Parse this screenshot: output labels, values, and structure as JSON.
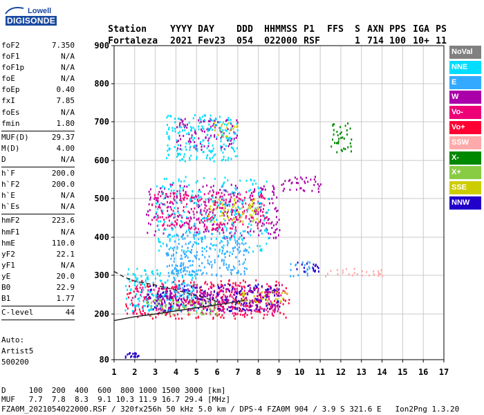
{
  "logo": {
    "line1": "Lowell",
    "line2": "DIGISONDE"
  },
  "header": {
    "labels": [
      "Station",
      "YYYY",
      "DAY",
      "DDD",
      "HHMMSS",
      "P1",
      "FFS",
      "S",
      "AXN",
      "PPS",
      "IGA",
      "PS"
    ],
    "values": [
      "Fortaleza",
      "2021",
      "Fev23",
      "054",
      "022000",
      "RSF",
      "",
      "1",
      "714",
      "100",
      "10+",
      "11"
    ]
  },
  "params": {
    "group1": [
      {
        "name": "foF2",
        "value": "7.350"
      },
      {
        "name": "foF1",
        "value": "N/A"
      },
      {
        "name": "foF1p",
        "value": "N/A"
      },
      {
        "name": "foE",
        "value": "N/A"
      },
      {
        "name": "foEp",
        "value": "0.40"
      },
      {
        "name": "fxI",
        "value": "7.85"
      },
      {
        "name": "foEs",
        "value": "N/A"
      },
      {
        "name": "fmin",
        "value": "1.80"
      }
    ],
    "group2": [
      {
        "name": "MUF(D)",
        "value": "29.37"
      },
      {
        "name": "M(D)",
        "value": "4.00"
      },
      {
        "name": "D",
        "value": "N/A"
      }
    ],
    "group3": [
      {
        "name": "h`F",
        "value": "200.0"
      },
      {
        "name": "h`F2",
        "value": "200.0"
      },
      {
        "name": "h`E",
        "value": "N/A"
      },
      {
        "name": "h`Es",
        "value": "N/A"
      }
    ],
    "group4": [
      {
        "name": "hmF2",
        "value": "223.6"
      },
      {
        "name": "hmF1",
        "value": "N/A"
      },
      {
        "name": "hmE",
        "value": "110.0"
      },
      {
        "name": "yF2",
        "value": "22.1"
      },
      {
        "name": "yF1",
        "value": "N/A"
      },
      {
        "name": "yE",
        "value": "20.0"
      },
      {
        "name": "B0",
        "value": "22.9"
      },
      {
        "name": "B1",
        "value": "1.77"
      }
    ],
    "group5": [
      {
        "name": "C-level",
        "value": "44"
      }
    ]
  },
  "autoscale": {
    "line1": "Auto:",
    "line2": "Artist5",
    "line3": "500200"
  },
  "legend": [
    {
      "label": "NoVal",
      "color": "#808080"
    },
    {
      "label": "NNE",
      "color": "#00ddff"
    },
    {
      "label": "E",
      "color": "#33aaff"
    },
    {
      "label": "W",
      "color": "#aa00aa"
    },
    {
      "label": "Vo-",
      "color": "#ee0077"
    },
    {
      "label": "Vo+",
      "color": "#ff0033"
    },
    {
      "label": "SSW",
      "color": "#ffaaaa"
    },
    {
      "label": "X-",
      "color": "#008800"
    },
    {
      "label": "X+",
      "color": "#88cc44"
    },
    {
      "label": "SSE",
      "color": "#cccc00"
    },
    {
      "label": "NNW",
      "color": "#2200cc"
    }
  ],
  "chart_data": {
    "type": "scatter",
    "x_range": [
      1,
      17
    ],
    "y_range": [
      80,
      900
    ],
    "x_ticks": [
      1,
      2,
      3,
      4,
      5,
      6,
      7,
      8,
      9,
      10,
      11,
      12,
      13,
      14,
      15,
      16,
      17
    ],
    "y_ticks": [
      80,
      200,
      300,
      400,
      500,
      600,
      700,
      800,
      900
    ],
    "grid": true,
    "clusters": [
      {
        "label": "F-trace",
        "color": "#ff0033",
        "xmin": 1.5,
        "xmax": 9.5,
        "ymin": 190,
        "ymax": 290
      },
      {
        "label": "F-trace",
        "color": "#ee0077",
        "xmin": 1.8,
        "xmax": 9.2,
        "ymin": 200,
        "ymax": 280
      },
      {
        "label": "F-trace",
        "color": "#2200cc",
        "xmin": 2.5,
        "xmax": 9.0,
        "ymin": 210,
        "ymax": 280
      },
      {
        "label": "F-trace",
        "color": "#00ddff",
        "xmin": 1.5,
        "xmax": 5.0,
        "ymin": 210,
        "ymax": 320
      },
      {
        "label": "F-trace",
        "color": "#aa00aa",
        "xmin": 3.0,
        "xmax": 9.0,
        "ymin": 210,
        "ymax": 270
      },
      {
        "label": "F-trace",
        "color": "#cccc00",
        "xmin": 7.0,
        "xmax": 9.5,
        "ymin": 230,
        "ymax": 260
      },
      {
        "label": "F-trace",
        "color": "#88cc44",
        "xmin": 2.5,
        "xmax": 6.0,
        "ymin": 200,
        "ymax": 240
      },
      {
        "label": "F-trace",
        "color": "#33aaff",
        "xmin": 3.8,
        "xmax": 4.8,
        "ymin": 250,
        "ymax": 330
      },
      {
        "label": "2hop",
        "color": "#aa00aa",
        "xmin": 2.5,
        "xmax": 9.0,
        "ymin": 400,
        "ymax": 540
      },
      {
        "label": "2hop",
        "color": "#ee0077",
        "xmin": 2.8,
        "xmax": 8.5,
        "ymin": 420,
        "ymax": 520
      },
      {
        "label": "2hop",
        "color": "#cccc00",
        "xmin": 5.5,
        "xmax": 8.0,
        "ymin": 440,
        "ymax": 500
      },
      {
        "label": "2hop",
        "color": "#00ddff",
        "xmin": 3.0,
        "xmax": 8.5,
        "ymin": 360,
        "ymax": 560
      },
      {
        "label": "2hop",
        "color": "#33aaff",
        "xmin": 3.5,
        "xmax": 7.5,
        "ymin": 300,
        "ymax": 420
      },
      {
        "label": "2hop-blob",
        "color": "#aa00aa",
        "xmin": 9.0,
        "xmax": 11.0,
        "ymin": 520,
        "ymax": 560
      },
      {
        "label": "blob",
        "color": "#2200cc",
        "xmin": 9.8,
        "xmax": 11.0,
        "ymin": 310,
        "ymax": 340
      },
      {
        "label": "blob",
        "color": "#33aaff",
        "xmin": 9.5,
        "xmax": 10.5,
        "ymin": 300,
        "ymax": 340
      },
      {
        "label": "3hop",
        "color": "#aa00aa",
        "xmin": 4.0,
        "xmax": 7.0,
        "ymin": 630,
        "ymax": 710
      },
      {
        "label": "3hop",
        "color": "#cccc00",
        "xmin": 5.8,
        "xmax": 7.0,
        "ymin": 660,
        "ymax": 700
      },
      {
        "label": "3hop",
        "color": "#00ddff",
        "xmin": 3.5,
        "xmax": 7.0,
        "ymin": 600,
        "ymax": 720
      },
      {
        "label": "low",
        "color": "#2200cc",
        "xmin": 1.5,
        "xmax": 2.2,
        "ymin": 88,
        "ymax": 100
      },
      {
        "label": "sparse",
        "color": "#ffaaaa",
        "xmin": 11.0,
        "xmax": 14.0,
        "ymin": 300,
        "ymax": 320
      },
      {
        "label": "sparse",
        "color": "#008800",
        "xmin": 11.5,
        "xmax": 12.5,
        "ymin": 620,
        "ymax": 700
      }
    ],
    "curve_dashed": {
      "x": [
        1.0,
        1.5,
        2.0,
        2.5,
        3.0,
        3.5,
        4.0,
        4.5,
        5.0,
        5.5,
        6.0
      ],
      "y": [
        310,
        295,
        285,
        280,
        275,
        268,
        262,
        255,
        247,
        240,
        232
      ]
    },
    "curve_solid": {
      "x": [
        1.0,
        2.0,
        3.0,
        4.0,
        5.0,
        6.0,
        7.0,
        7.35
      ],
      "y": [
        183,
        193,
        200,
        208,
        216,
        224,
        232,
        236
      ]
    }
  },
  "footer": {
    "line1": "D     100  200  400  600  800 1000 1500 3000 [km]",
    "line2": "MUF   7.7  7.8  8.3  9.1 10.3 11.9 16.7 29.4 [MHz]",
    "line3": "FZA0M_2021054022000.RSF / 320fx256h 50 kHz 5.0 km / DPS-4 FZA0M 904 / 3.9 S 321.6 E   Ion2Png 1.3.20"
  }
}
